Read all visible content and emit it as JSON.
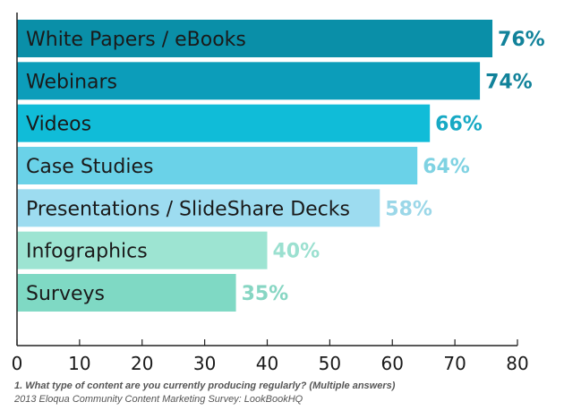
{
  "chart_data": {
    "type": "bar",
    "orientation": "horizontal",
    "categories": [
      "White Papers / eBooks",
      "Webinars",
      "Videos",
      "Case Studies",
      "Presentations / SlideShare Decks",
      "Infographics",
      "Surveys"
    ],
    "values": [
      76,
      74,
      66,
      64,
      58,
      40,
      35
    ],
    "value_labels": [
      "76%",
      "74%",
      "66%",
      "64%",
      "58%",
      "40%",
      "35%"
    ],
    "bar_colors": [
      "#0a8fa8",
      "#0c9dba",
      "#10bcd8",
      "#6ad2e8",
      "#9ddcf0",
      "#9de4d2",
      "#7fd9c4"
    ],
    "label_colors": [
      "#11829a",
      "#11829a",
      "#17a9c4",
      "#7fd2e2",
      "#9bd7e8",
      "#9be0d0",
      "#87d6c3"
    ],
    "xlim": [
      0,
      80
    ],
    "xticks": [
      0,
      10,
      20,
      30,
      40,
      50,
      60,
      70,
      80
    ],
    "grid": false
  },
  "footnote": {
    "question": "1. What type of content are you currently producing regularly? (Multiple answers)",
    "source": "2013 Eloqua Community Content Marketing Survey: LookBookHQ"
  }
}
